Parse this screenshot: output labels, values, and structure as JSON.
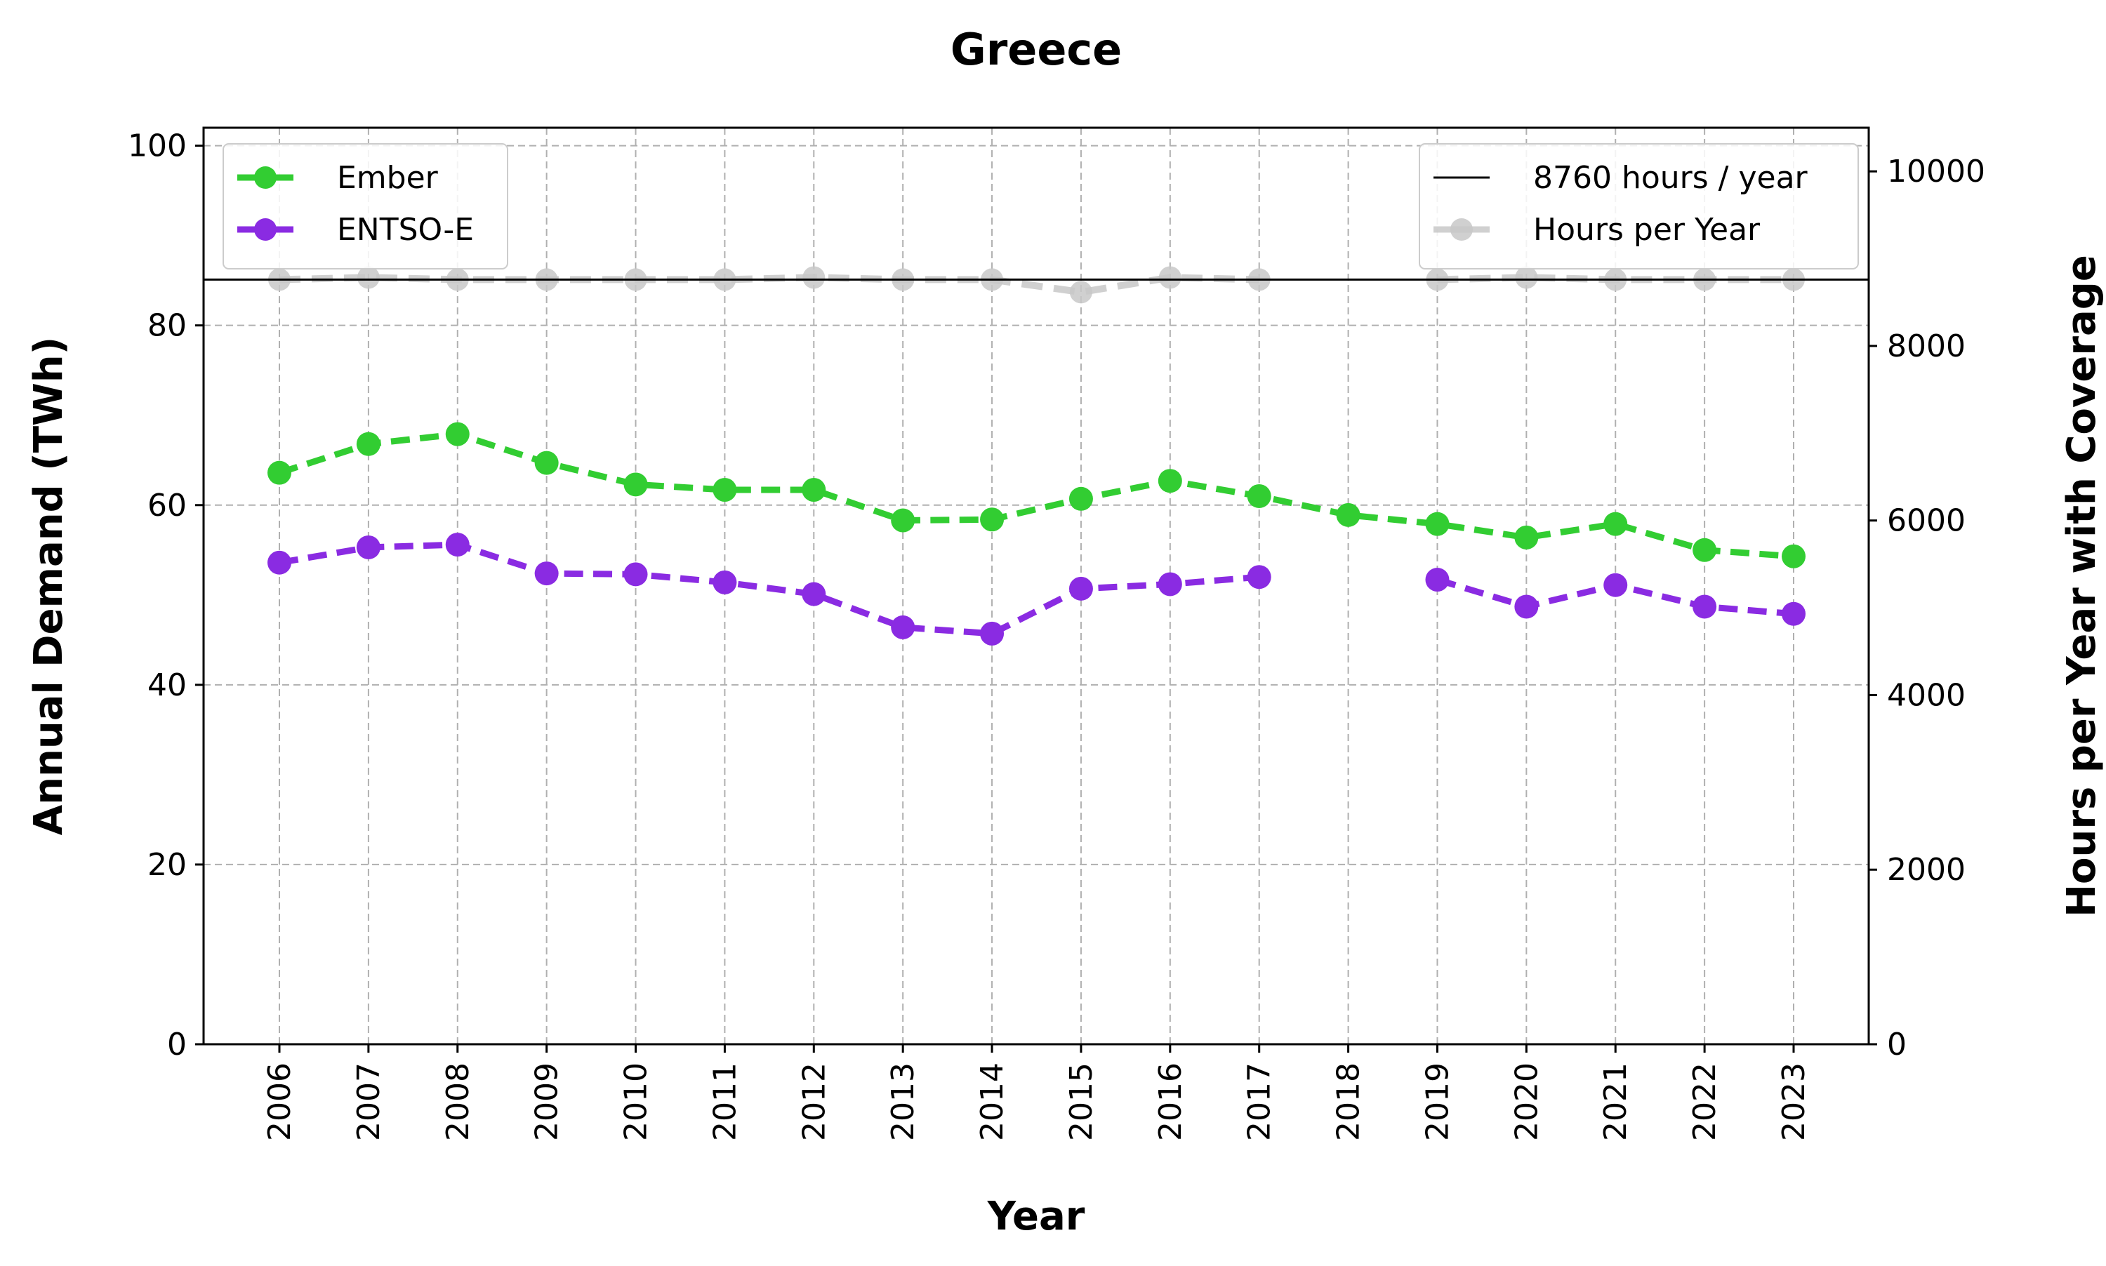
{
  "chart_data": {
    "type": "line",
    "title": "Greece",
    "xlabel": "Year",
    "ylabel": "Annual Demand (TWh)",
    "y2label": "Hours per Year with Coverage",
    "categories": [
      "2006",
      "2007",
      "2008",
      "2009",
      "2010",
      "2011",
      "2012",
      "2013",
      "2014",
      "2015",
      "2016",
      "2017",
      "2018",
      "2019",
      "2020",
      "2021",
      "2022",
      "2023"
    ],
    "ylim": [
      0,
      102
    ],
    "y2lim": [
      0,
      10500
    ],
    "yticks": [
      0,
      20,
      40,
      60,
      80,
      100
    ],
    "y2ticks": [
      0,
      2000,
      4000,
      6000,
      8000,
      10000
    ],
    "grid": true,
    "series": [
      {
        "name": "Ember",
        "axis": "left",
        "color": "#32cd32",
        "style": "dashed",
        "marker": "circle",
        "values": [
          63.6,
          66.8,
          67.9,
          64.7,
          62.3,
          61.7,
          61.7,
          58.3,
          58.4,
          60.7,
          62.7,
          61.0,
          58.9,
          57.9,
          56.4,
          57.9,
          55.0,
          54.3
        ]
      },
      {
        "name": "ENTSO-E",
        "axis": "left",
        "color": "#8a2be2",
        "style": "dashed",
        "marker": "circle",
        "values": [
          53.6,
          55.3,
          55.6,
          52.4,
          52.3,
          51.4,
          50.1,
          46.4,
          45.7,
          50.7,
          51.2,
          52.0,
          null,
          51.7,
          48.7,
          51.1,
          48.7,
          47.9
        ]
      },
      {
        "name": "Hours per Year",
        "axis": "right",
        "color": "#c8c8c8",
        "style": "dashed",
        "marker": "circle",
        "values": [
          8760,
          8784,
          8760,
          8760,
          8760,
          8760,
          8784,
          8760,
          8760,
          8616,
          8784,
          8760,
          null,
          8760,
          8784,
          8760,
          8760,
          8760
        ]
      }
    ],
    "reference_line": {
      "name": "8760 hours / year",
      "axis": "right",
      "value": 8760,
      "color": "#000000"
    },
    "legends": [
      {
        "placement": "top-left",
        "entries": [
          "Ember",
          "ENTSO-E"
        ]
      },
      {
        "placement": "top-right",
        "entries": [
          "8760 hours / year",
          "Hours per Year"
        ]
      }
    ]
  }
}
